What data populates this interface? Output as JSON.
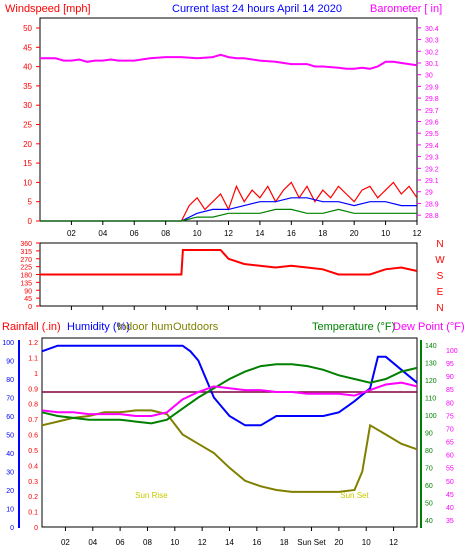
{
  "chart_data": [
    {
      "type": "line",
      "title": "Current last 24 hours April 14 2020",
      "left_axis_label": "Windspeed [mph]",
      "right_axis_label": "Barometer [ in]",
      "left_ylim": [
        0,
        50
      ],
      "left_ticks": [
        "0",
        "5",
        "10",
        "15",
        "20",
        "25",
        "30",
        "35",
        "40",
        "45",
        "50"
      ],
      "right_ylim": [
        28.75,
        30.45
      ],
      "right_ticks": [
        "28.8",
        "28.9",
        "29",
        "29.1",
        "29.2",
        "29.3",
        "29.4",
        "29.5",
        "29.6",
        "29.7",
        "29.8",
        "29.9",
        "30",
        "30.1",
        "30.2",
        "30.3",
        "30.4"
      ],
      "x_ticks": [
        "02",
        "04",
        "06",
        "08",
        "10",
        "12",
        "14",
        "16",
        "18",
        "20",
        "10",
        "12"
      ],
      "colors": {
        "windspeed": "#ff0000",
        "barometer": "#ff00ff",
        "gust": "#ff0000",
        "average": "#008000",
        "direction_avg": "#0000ff"
      },
      "series": [
        {
          "name": "Barometer",
          "axis": "right",
          "x": [
            0,
            1,
            1.5,
            2,
            2.5,
            3,
            3.5,
            4,
            4.5,
            5,
            6,
            7,
            8,
            9,
            10,
            11,
            11.5,
            12,
            12.5,
            13,
            14,
            15,
            16,
            17,
            17.5,
            18,
            19,
            19.5,
            20,
            20.5,
            21,
            21.5,
            22,
            22.5,
            23,
            23.5,
            24
          ],
          "values": [
            30.14,
            30.14,
            30.12,
            30.12,
            30.13,
            30.11,
            30.12,
            30.12,
            30.13,
            30.12,
            30.12,
            30.14,
            30.15,
            30.15,
            30.14,
            30.15,
            30.17,
            30.15,
            30.14,
            30.14,
            30.12,
            30.11,
            30.09,
            30.09,
            30.07,
            30.07,
            30.06,
            30.05,
            30.05,
            30.06,
            30.05,
            30.07,
            30.11,
            30.11,
            30.1,
            30.09,
            30.08
          ]
        },
        {
          "name": "Windspeed gust",
          "axis": "left",
          "x": [
            0,
            9,
            9.5,
            10,
            10.5,
            11,
            11.5,
            12,
            12.5,
            13,
            13.5,
            14,
            14.5,
            15,
            15.5,
            16,
            16.5,
            17,
            17.5,
            18,
            18.5,
            19,
            19.5,
            20,
            20.5,
            21,
            21.5,
            22,
            22.5,
            23,
            23.5,
            24
          ],
          "values": [
            0,
            0,
            4,
            6,
            3,
            5,
            7,
            3,
            9,
            5,
            8,
            6,
            9,
            5,
            8,
            10,
            6,
            9,
            5,
            8,
            6,
            9,
            7,
            5,
            8,
            9,
            6,
            8,
            10,
            7,
            9,
            6
          ]
        },
        {
          "name": "Windspeed avg",
          "axis": "left",
          "x": [
            0,
            9,
            10,
            11,
            12,
            13,
            14,
            15,
            16,
            17,
            18,
            19,
            20,
            21,
            22,
            23,
            24
          ],
          "values": [
            0,
            0,
            2,
            3,
            3,
            4,
            5,
            5,
            6,
            6,
            5,
            5,
            4,
            5,
            5,
            4,
            4
          ]
        },
        {
          "name": "Windspeed low",
          "axis": "left",
          "x": [
            0,
            9,
            10,
            11,
            12,
            13,
            14,
            15,
            16,
            17,
            18,
            19,
            20,
            21,
            22,
            23,
            24
          ],
          "values": [
            0,
            0,
            1,
            1,
            2,
            2,
            2,
            3,
            3,
            2,
            2,
            3,
            2,
            2,
            2,
            2,
            2
          ]
        }
      ]
    },
    {
      "type": "line",
      "title": "",
      "left_ylim": [
        0,
        360
      ],
      "left_ticks": [
        "0",
        "45",
        "90",
        "135",
        "180",
        "225",
        "270",
        "315",
        "360"
      ],
      "right_labels": [
        "N",
        "W",
        "S",
        "E",
        "N"
      ],
      "x_ticks": [
        "02",
        "04",
        "06",
        "08",
        "10",
        "12",
        "14",
        "16",
        "18",
        "20",
        "10",
        "12"
      ],
      "series": [
        {
          "name": "Wind direction",
          "color": "#ff0000",
          "x": [
            0,
            9,
            9.1,
            11.5,
            12,
            13,
            14,
            15,
            16,
            17,
            18,
            19,
            20,
            21,
            22,
            23,
            24
          ],
          "values": [
            180,
            180,
            320,
            320,
            270,
            240,
            230,
            220,
            230,
            220,
            210,
            180,
            180,
            180,
            210,
            220,
            200
          ]
        }
      ]
    },
    {
      "type": "line",
      "title": "",
      "labels_left": [
        "Rainfall (.in)",
        "Humidity (%)",
        "Indoor hum",
        "Outdoors"
      ],
      "labels_right": [
        "Temperature (°F)",
        "Dew Point (°F)"
      ],
      "left_hum_ticks": [
        "0",
        "10",
        "20",
        "30",
        "40",
        "50",
        "60",
        "70",
        "80",
        "90",
        "100"
      ],
      "left_rain_ticks": [
        "0",
        "0.1",
        "0.2",
        "0.3",
        "0.4",
        "0.5",
        "0.6",
        "0.7",
        "0.8",
        "0.9",
        "1",
        "1.1",
        "1.2"
      ],
      "right_temp_ticks": [
        "40",
        "50",
        "60",
        "70",
        "80",
        "90",
        "100",
        "110",
        "120",
        "130",
        "140"
      ],
      "right_dew_ticks": [
        "35",
        "40",
        "45",
        "50",
        "55",
        "60",
        "65",
        "70",
        "75",
        "80",
        "85",
        "90",
        "95",
        "100"
      ],
      "x_ticks": [
        "02",
        "04",
        "06",
        "08",
        "10",
        "12",
        "14",
        "16",
        "18",
        "Sun Set",
        "20",
        "10",
        "12"
      ],
      "annotations": [
        {
          "text": "Sun Rise",
          "x": 7.0
        },
        {
          "text": "Sun Set",
          "x": 20.0
        }
      ],
      "hline_value": 73,
      "series": [
        {
          "name": "Outdoor humidity",
          "color": "#0000ff",
          "x": [
            0,
            1,
            2,
            3,
            4,
            5,
            6,
            7,
            8,
            9,
            9.5,
            10,
            10.5,
            11,
            12,
            13,
            14,
            15,
            16,
            17,
            18,
            19,
            19.5,
            20,
            21,
            21.5,
            22,
            23,
            24
          ],
          "values": [
            95,
            98,
            98,
            98,
            98,
            98,
            98,
            98,
            98,
            98,
            95,
            90,
            80,
            70,
            60,
            55,
            55,
            60,
            60,
            60,
            60,
            62,
            65,
            68,
            75,
            92,
            92,
            85,
            78
          ]
        },
        {
          "name": "Indoor humidity",
          "color": "#808000",
          "x": [
            0,
            1,
            2,
            3,
            4,
            5,
            6,
            7,
            8,
            9,
            10,
            11,
            12,
            13,
            14,
            15,
            16,
            17,
            18,
            19,
            20,
            20.5,
            21,
            22,
            23,
            24
          ],
          "values": [
            55,
            57,
            59,
            60,
            62,
            62,
            63,
            63,
            61,
            50,
            45,
            40,
            32,
            25,
            22,
            20,
            19,
            19,
            19,
            19,
            20,
            30,
            55,
            50,
            45,
            42
          ]
        },
        {
          "name": "Temperature",
          "color": "#008000",
          "x": [
            0,
            1,
            2,
            3,
            4,
            5,
            6,
            7,
            8,
            9,
            10,
            11,
            12,
            13,
            14,
            15,
            16,
            17,
            18,
            19,
            20,
            21,
            22,
            23,
            24
          ],
          "values": [
            62,
            60,
            59,
            58,
            58,
            58,
            57,
            56,
            58,
            64,
            70,
            75,
            80,
            84,
            87,
            88,
            88,
            87,
            85,
            82,
            80,
            78,
            80,
            84,
            86
          ]
        },
        {
          "name": "Dew point",
          "color": "#ff00ff",
          "x": [
            0,
            1,
            2,
            3,
            4,
            5,
            6,
            7,
            8,
            9,
            10,
            11,
            12,
            13,
            14,
            15,
            16,
            17,
            18,
            19,
            20,
            21,
            22,
            23,
            24
          ],
          "values": [
            63,
            62,
            62,
            61,
            61,
            61,
            60,
            60,
            62,
            69,
            73,
            76,
            75,
            74,
            74,
            73,
            73,
            72,
            72,
            72,
            71,
            74,
            77,
            78,
            76
          ]
        },
        {
          "name": "Barometer trace",
          "color": "#800040",
          "x": [
            0,
            24
          ],
          "values": [
            73,
            73
          ]
        }
      ]
    }
  ]
}
